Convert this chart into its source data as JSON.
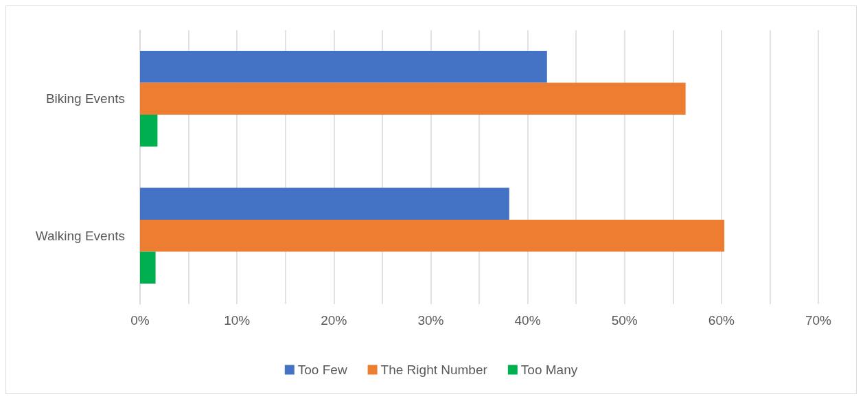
{
  "chart_data": {
    "type": "bar",
    "orientation": "horizontal",
    "categories": [
      "Biking Events",
      "Walking Events"
    ],
    "series": [
      {
        "name": "Too Few",
        "color": "#4472c4",
        "values": [
          42,
          38.1
        ]
      },
      {
        "name": "The Right Number",
        "color": "#ed7d31",
        "values": [
          56.3,
          60.3
        ]
      },
      {
        "name": "Too Many",
        "color": "#00b050",
        "values": [
          1.8,
          1.6
        ]
      }
    ],
    "xlim": [
      0,
      70
    ],
    "xticks": [
      {
        "value": 0,
        "label": "0%"
      },
      {
        "value": 5,
        "label": null
      },
      {
        "value": 10,
        "label": "10%"
      },
      {
        "value": 15,
        "label": null
      },
      {
        "value": 20,
        "label": "20%"
      },
      {
        "value": 25,
        "label": null
      },
      {
        "value": 30,
        "label": "30%"
      },
      {
        "value": 35,
        "label": null
      },
      {
        "value": 40,
        "label": "40%"
      },
      {
        "value": 45,
        "label": null
      },
      {
        "value": 50,
        "label": "50%"
      },
      {
        "value": 55,
        "label": null
      },
      {
        "value": 60,
        "label": "60%"
      },
      {
        "value": 65,
        "label": null
      },
      {
        "value": 70,
        "label": "70%"
      }
    ],
    "grid": true,
    "legend": "bottom"
  }
}
